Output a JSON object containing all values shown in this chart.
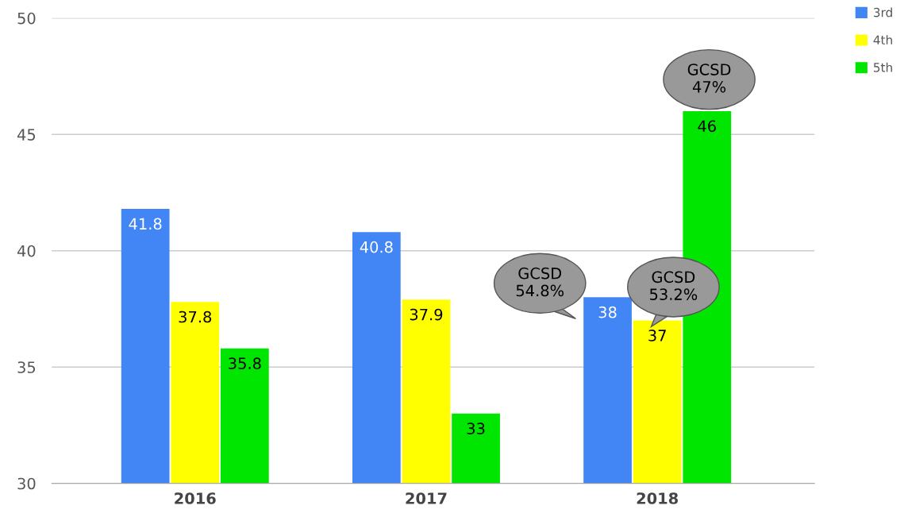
{
  "chart_data": {
    "type": "bar",
    "categories": [
      "2016",
      "2017",
      "2018"
    ],
    "series": [
      {
        "name": "3rd",
        "color": "#4285f4",
        "values": [
          41.8,
          40.8,
          38
        ]
      },
      {
        "name": "4th",
        "color": "#ffff00",
        "values": [
          37.8,
          37.9,
          37
        ]
      },
      {
        "name": "5th",
        "color": "#00e600",
        "values": [
          35.8,
          33,
          46
        ]
      }
    ],
    "ylim": [
      30,
      50
    ],
    "yticks": [
      30,
      35,
      40,
      45,
      50
    ],
    "grid": "y",
    "legend": "top right",
    "data_labels": true,
    "annotations": [
      "GCSD\n54.8%",
      "GCSD\n53.2%",
      "GCSD\n47%"
    ]
  }
}
